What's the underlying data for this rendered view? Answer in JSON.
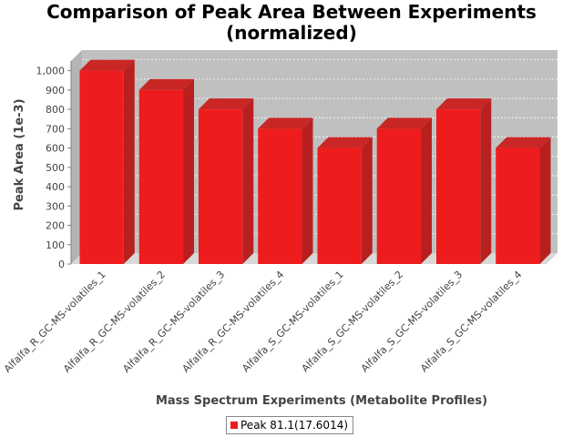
{
  "chart_data": {
    "type": "bar",
    "title_lines": [
      "Comparison of Peak Area Between Experiments",
      "(normalized)"
    ],
    "xlabel": "Mass Spectrum Experiments (Metabolite Profiles)",
    "ylabel": "Peak Area (1e-3)",
    "categories": [
      "Alfalfa_R_GC-MS-volatiles_1",
      "Alfalfa_R_GC-MS-volatiles_2",
      "Alfalfa_R_GC-MS-volatiles_3",
      "Alfalfa_R_GC-MS-volatiles_4",
      "Alfalfa_S_GC-MS-volatiles_1",
      "Alfalfa_S_GC-MS-volatiles_2",
      "Alfalfa_S_GC-MS-volatiles_3",
      "Alfalfa_S_GC-MS-volatiles_4"
    ],
    "series": [
      {
        "name": "Peak 81.1(17.6014)",
        "values": [
          1000,
          900,
          800,
          700,
          600,
          700,
          800,
          600
        ],
        "color": "#ee1c1c"
      }
    ],
    "ylim": [
      0,
      1050
    ],
    "yticks": [
      0,
      100,
      200,
      300,
      400,
      500,
      600,
      700,
      800,
      900,
      1000
    ],
    "ytick_labels": [
      "0",
      "100",
      "200",
      "300",
      "400",
      "500",
      "600",
      "700",
      "800",
      "900",
      "1,000"
    ],
    "grid": true,
    "legend_position": "bottom-center",
    "style": "3d",
    "plot_background": "#c0c0c0"
  }
}
